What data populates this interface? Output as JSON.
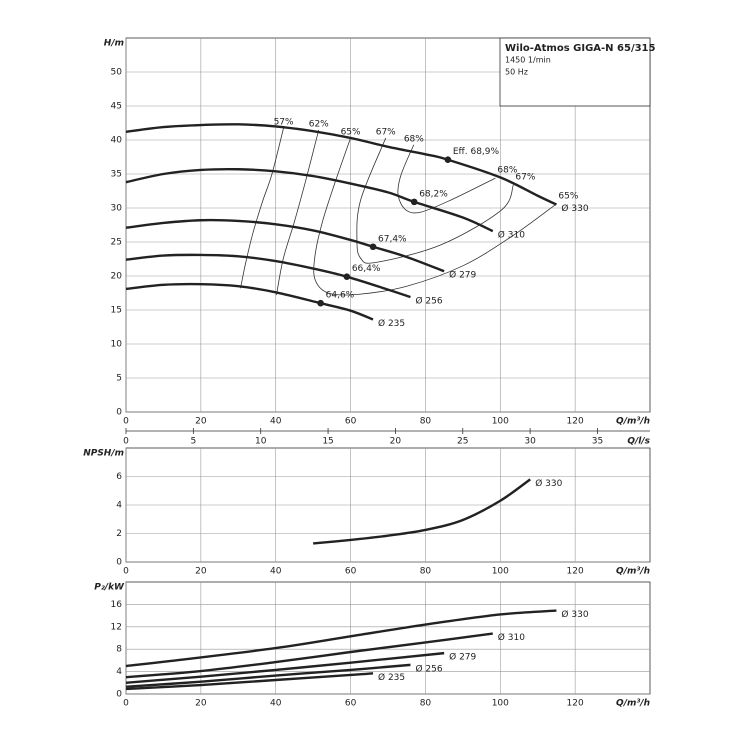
{
  "chart_data": [
    {
      "type": "line",
      "title": "Wilo-Atmos GIGA-N 65/315",
      "subtitle": [
        "1450 1/min",
        "50 Hz"
      ],
      "ylabel": "H/m",
      "xlabel": "Q/m³/h",
      "x2label": "Q/l/s",
      "xlim": [
        0,
        140
      ],
      "xticks": [
        0,
        20,
        40,
        60,
        80,
        100,
        120
      ],
      "x2lim": [
        0,
        38.9
      ],
      "x2ticks": [
        0,
        5,
        10,
        15,
        20,
        25,
        30,
        35
      ],
      "ylim": [
        0,
        55
      ],
      "yticks": [
        0,
        5,
        10,
        15,
        20,
        25,
        30,
        35,
        40,
        45,
        50
      ],
      "grid": true,
      "color": "#222",
      "series": [
        {
          "name": "Ø 330",
          "x": [
            0,
            10,
            20,
            30,
            40,
            50,
            60,
            70,
            80,
            86,
            100,
            110,
            115
          ],
          "values": [
            41.2,
            41.9,
            42.2,
            42.3,
            42.0,
            41.3,
            40.3,
            39.0,
            37.9,
            37.1,
            34.5,
            31.8,
            30.5
          ]
        },
        {
          "name": "Ø 310",
          "x": [
            0,
            10,
            20,
            30,
            40,
            50,
            60,
            70,
            77,
            90,
            98
          ],
          "values": [
            33.8,
            35.0,
            35.6,
            35.7,
            35.4,
            34.7,
            33.6,
            32.3,
            30.9,
            28.6,
            26.6
          ]
        },
        {
          "name": "Ø 279",
          "x": [
            0,
            10,
            20,
            30,
            40,
            50,
            60,
            66,
            75,
            85
          ],
          "values": [
            27.1,
            27.8,
            28.2,
            28.1,
            27.6,
            26.7,
            25.3,
            24.3,
            22.8,
            20.7
          ]
        },
        {
          "name": "Ø 256",
          "x": [
            0,
            10,
            20,
            30,
            40,
            50,
            59,
            70,
            76
          ],
          "values": [
            22.4,
            23.0,
            23.1,
            22.9,
            22.2,
            21.1,
            19.9,
            18.0,
            16.9
          ]
        },
        {
          "name": "Ø 235",
          "x": [
            0,
            10,
            20,
            30,
            40,
            52,
            60,
            66
          ],
          "values": [
            18.1,
            18.7,
            18.8,
            18.5,
            17.6,
            16.0,
            14.9,
            13.6
          ]
        }
      ],
      "efficiency_curves": [
        {
          "name": "57%",
          "x": [
            42.1,
            39,
            36.5,
            34,
            32,
            30.6
          ],
          "values": [
            41.8,
            35,
            31,
            26.5,
            22,
            18.2
          ]
        },
        {
          "name": "62%",
          "x": [
            51.5,
            48,
            45,
            42,
            40.2
          ],
          "values": [
            41.5,
            34,
            28,
            22.5,
            17.2
          ]
        },
        {
          "name": "65%",
          "x": [
            60,
            56,
            52.5,
            50.5,
            50.5,
            54,
            62,
            75,
            90,
            103,
            115
          ],
          "values": [
            40.3,
            34,
            28,
            23,
            19.5,
            17.5,
            17.3,
            18.5,
            21.5,
            25.8,
            30.6
          ]
        },
        {
          "name": "67%",
          "x": [
            69.4,
            62.7,
            61.7,
            62.7,
            66.8,
            84.2,
            100.3,
            103.5
          ],
          "values": [
            40.3,
            31.2,
            25.3,
            22.6,
            22,
            24.6,
            29.7,
            33.4
          ]
        },
        {
          "name": "68%",
          "x": [
            76.9,
            73.5,
            72.7,
            74.8,
            78.8,
            86.9,
            98.7
          ],
          "values": [
            39.3,
            34.9,
            31.9,
            29.7,
            29.4,
            31.2,
            34.4
          ]
        }
      ],
      "points": [
        {
          "label": "Eff. 68,9%",
          "x": 86,
          "value": 37.1
        },
        {
          "label": "68,2%",
          "x": 77,
          "value": 30.9
        },
        {
          "label": "67,4%",
          "x": 66,
          "value": 24.3
        },
        {
          "label": "66,4%",
          "x": 59,
          "value": 19.9
        },
        {
          "label": "64,6%",
          "x": 52,
          "value": 16.0
        }
      ]
    },
    {
      "type": "line",
      "ylabel": "NPSH/m",
      "xlabel": "Q/m³/h",
      "xlim": [
        0,
        140
      ],
      "xticks": [
        0,
        20,
        40,
        60,
        80,
        100,
        120
      ],
      "ylim": [
        0,
        8
      ],
      "yticks": [
        0,
        2,
        4,
        6
      ],
      "grid": true,
      "color": "#222",
      "series": [
        {
          "name": "Ø 330",
          "x": [
            50,
            60,
            70,
            80,
            90,
            100,
            108
          ],
          "values": [
            1.3,
            1.55,
            1.85,
            2.25,
            2.95,
            4.3,
            5.8
          ]
        }
      ]
    },
    {
      "type": "line",
      "ylabel": "P₂/kW",
      "xlabel": "Q/m³/h",
      "xlim": [
        0,
        140
      ],
      "xticks": [
        0,
        20,
        40,
        60,
        80,
        100,
        120
      ],
      "ylim": [
        0,
        20
      ],
      "yticks": [
        0,
        4,
        8,
        12,
        16
      ],
      "grid": true,
      "color": "#222",
      "series": [
        {
          "name": "Ø 330",
          "x": [
            0,
            12,
            40,
            60,
            80,
            100,
            115
          ],
          "values": [
            5.0,
            5.9,
            8.2,
            10.3,
            12.4,
            14.2,
            14.9
          ]
        },
        {
          "name": "Ø 310",
          "x": [
            0,
            20,
            40,
            60,
            80,
            98
          ],
          "values": [
            3.0,
            4.1,
            5.7,
            7.5,
            9.2,
            10.8
          ]
        },
        {
          "name": "Ø 279",
          "x": [
            0,
            20,
            40,
            60,
            85
          ],
          "values": [
            2.0,
            3.1,
            4.3,
            5.6,
            7.3
          ]
        },
        {
          "name": "Ø 256",
          "x": [
            0,
            20,
            40,
            60,
            76
          ],
          "values": [
            1.3,
            2.2,
            3.3,
            4.3,
            5.2
          ]
        },
        {
          "name": "Ø 235",
          "x": [
            0,
            20,
            40,
            60,
            66
          ],
          "values": [
            0.9,
            1.6,
            2.5,
            3.4,
            3.7
          ]
        }
      ]
    }
  ]
}
